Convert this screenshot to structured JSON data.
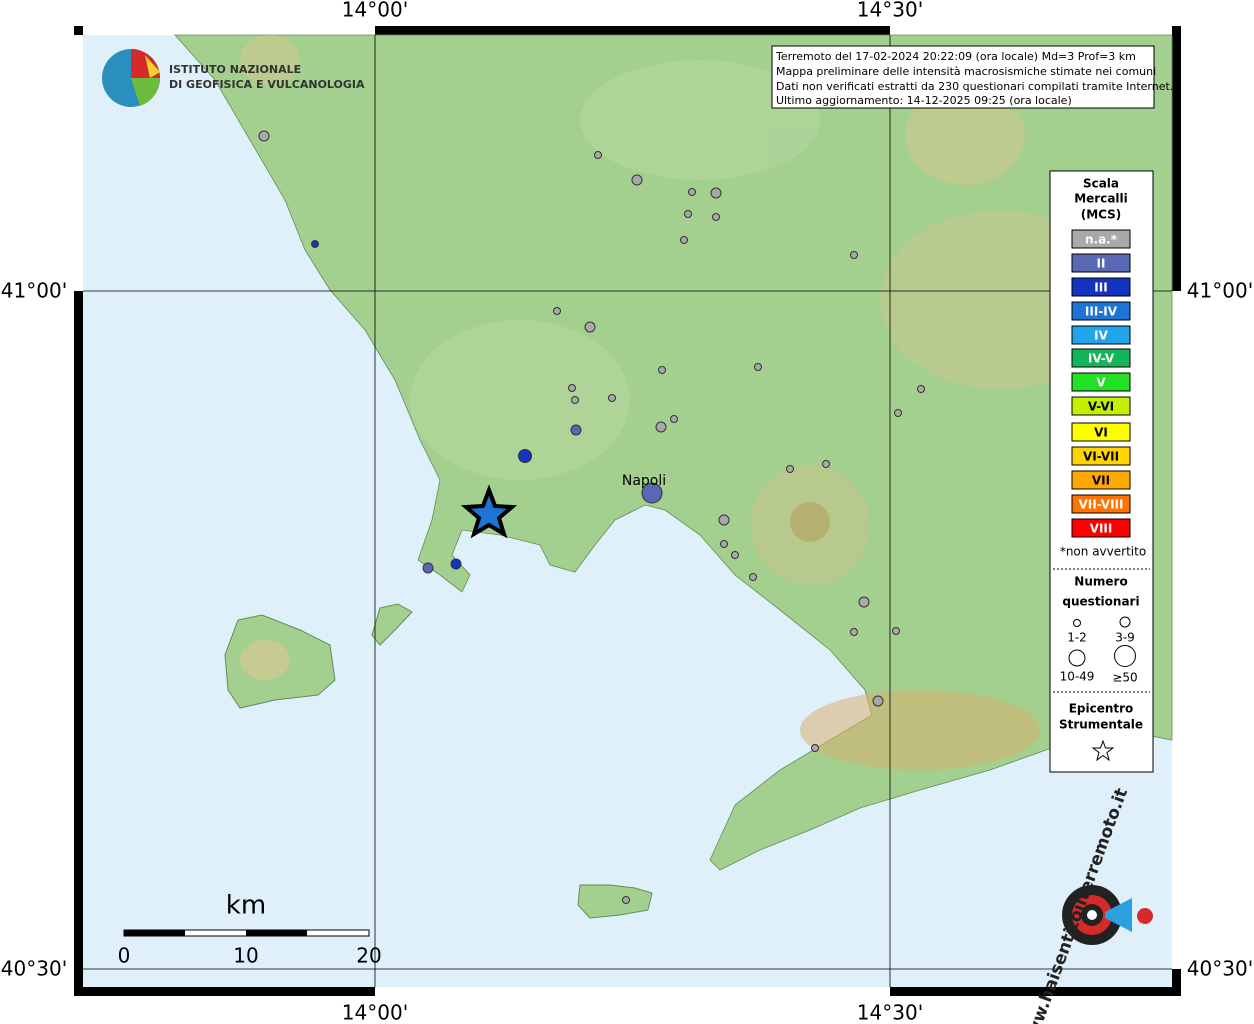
{
  "map": {
    "lon_labels": [
      "14°00'",
      "14°30'"
    ],
    "lat_labels": [
      "41°00'",
      "40°30'"
    ],
    "header": [
      "Terremoto del 17-02-2024 20:22:09 (ora locale) Md=3 Prof=3 km",
      "Mappa preliminare delle intensità macrosismiche stimate nei comuni",
      "Dati non verificati estratti da 230 questionari compilati tramite Internet.",
      "Ultimo aggiornamento: 14-12-2025 09:25 (ora locale)"
    ],
    "logo": [
      "ISTITUTO NAZIONALE",
      "DI GEOFISICA E VULCANOLOGIA"
    ],
    "city": "Napoli",
    "legend": {
      "title": [
        "Scala",
        "Mercalli",
        "(MCS)"
      ],
      "classes": [
        {
          "label": "n.a.*",
          "color": "#a9a9a9"
        },
        {
          "label": "II",
          "color": "#5868b4"
        },
        {
          "label": "III",
          "color": "#1434c0"
        },
        {
          "label": "III-IV",
          "color": "#1c74d4"
        },
        {
          "label": "IV",
          "color": "#20a4ec"
        },
        {
          "label": "IV-V",
          "color": "#14b45a"
        },
        {
          "label": "V",
          "color": "#24e024"
        },
        {
          "label": "V-VI",
          "color": "#c4f000"
        },
        {
          "label": "VI",
          "color": "#ffff00"
        },
        {
          "label": "VI-VII",
          "color": "#ffd400"
        },
        {
          "label": "VII",
          "color": "#ffa800"
        },
        {
          "label": "VII-VIII",
          "color": "#ff7400"
        },
        {
          "label": "VIII",
          "color": "#ff0000"
        }
      ],
      "note": "*non avvertito",
      "count_title": [
        "Numero",
        "questionari"
      ],
      "counts": [
        "1-2",
        "3-9",
        "10-49",
        "≥50"
      ],
      "epicenter_title": [
        "Epicentro",
        "Strumentale"
      ]
    },
    "scale": {
      "unit": "km",
      "labels": [
        "0",
        "10",
        "20"
      ]
    },
    "watermark": "www.haisentitoilterremoto.it"
  }
}
